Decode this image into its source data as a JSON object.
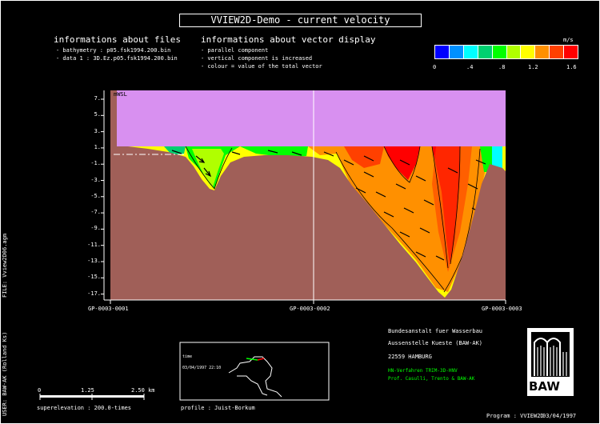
{
  "title": "VVIEW2D-Demo - current velocity",
  "files_panel": {
    "heading": "informations about files",
    "lines": [
      "- bathymetry :     p05.fsk1994.200.bin",
      "- data 1 :      3D.Ez.p05.fsk1994.200.bin"
    ]
  },
  "vector_panel": {
    "heading": "informations about vector display",
    "lines": [
      "- parallel component",
      "- vertical component is increased",
      "- colour = value of the total vector"
    ]
  },
  "legend": {
    "unit": "m/s",
    "colors": [
      "#0000ff",
      "#0090ff",
      "#00ffff",
      "#00d070",
      "#00ff00",
      "#b0ff00",
      "#ffff00",
      "#ff9000",
      "#ff4000",
      "#ff0000"
    ],
    "ticks": [
      "0",
      ".4",
      ".8",
      "1.2",
      "1.6"
    ]
  },
  "plot": {
    "y_ticks": [
      "7.",
      "5.",
      "3.",
      "1.",
      "-1.",
      "-3.",
      "-5.",
      "-7.",
      "-9.",
      "-11.",
      "-13.",
      "-15.",
      "-17."
    ],
    "water_level_label": "mWSL",
    "x_labels": [
      "GP-0003-0001",
      "GP-0003-0002",
      "GP-0003-0003"
    ]
  },
  "side_labels": {
    "file": "FILE: Vview2D06.agm",
    "user": "USER: BAW-AK (Rolland Ks)"
  },
  "inset_map": {
    "label1": "time",
    "label2": "03/04/1997 22:10",
    "profile_label": "profile :  Juist-Borkum"
  },
  "scale_bar": {
    "ticks": [
      "0",
      "1.25",
      "2.50 km"
    ],
    "superelevation": "superelevation :   200.0-times"
  },
  "institution": {
    "lines": [
      "Bundesanstalt fuer Wasserbau",
      "Aussenstelle Kueste (BAW-AK)",
      "22559 HAMBURG"
    ],
    "green_lines": [
      "HN-Verfahren TRIM-3D-HNV",
      "Prof. Casulli, Trento & BAW-AK"
    ],
    "logo_text": "BAW"
  },
  "footer": {
    "program": "Program : VVIEW2D",
    "date": "03/04/1997"
  }
}
